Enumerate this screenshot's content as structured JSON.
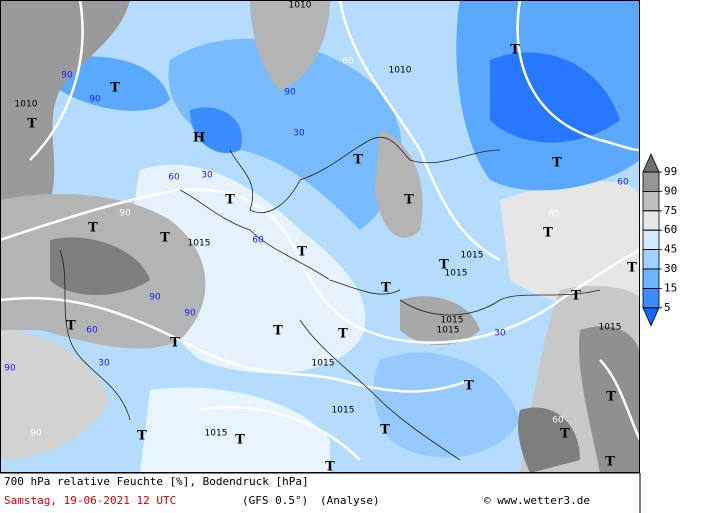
{
  "footer": {
    "title": "700 hPa relative Feuchte [%], Bodendruck [hPa]",
    "date": "Samstag, 19-06-2021  12 UTC",
    "model": "(GFS 0.5°)",
    "run": "(Analyse)",
    "credit": "© www.wetter3.de"
  },
  "legend": {
    "levels": [
      99,
      90,
      75,
      60,
      45,
      30,
      15,
      5
    ],
    "colors": [
      "#6e6e6e",
      "#969696",
      "#bebebe",
      "#e6e6e6",
      "#d2ebff",
      "#a0d2ff",
      "#6eb4ff",
      "#3c8cff",
      "#1464ff"
    ]
  },
  "map": {
    "labels": [
      "T",
      "T",
      "T",
      "T",
      "T",
      "T",
      "T",
      "T",
      "T",
      "T",
      "T",
      "T",
      "T",
      "T",
      "T",
      "T",
      "T",
      "T",
      "T",
      "T",
      "T",
      "T",
      "T",
      "T",
      "T",
      "T",
      "T",
      "H",
      "1010",
      "1010",
      "1010",
      "1015",
      "1015",
      "1015",
      "1015",
      "1015",
      "1015",
      "1015",
      "1015",
      "1015",
      "90",
      "90",
      "90",
      "90",
      "90",
      "90",
      "90",
      "90",
      "60",
      "60",
      "60",
      "60",
      "60",
      "60",
      "60",
      "30",
      "30",
      "30",
      "30",
      "30"
    ]
  }
}
